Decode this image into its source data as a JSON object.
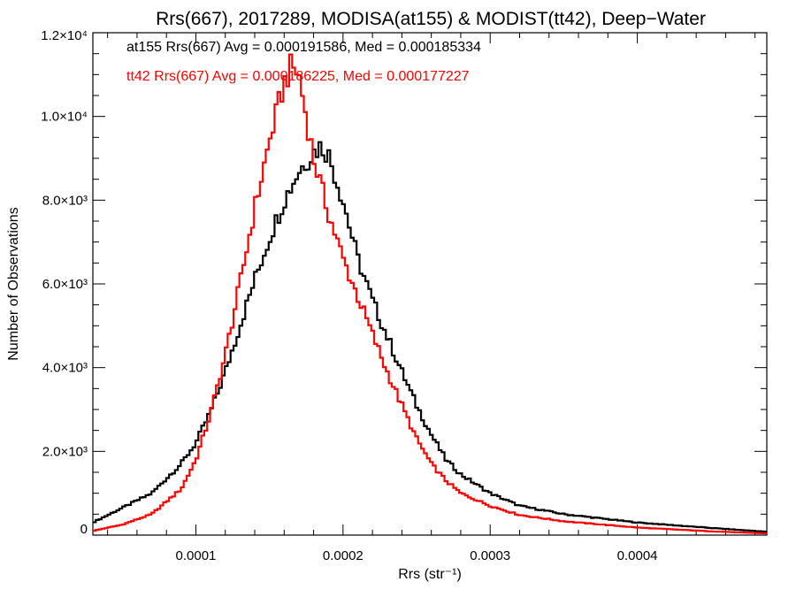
{
  "chart_data": {
    "type": "line",
    "title": "Rrs(667), 2017289, MODISA(at155) & MODIST(tt42), Deep−Water",
    "xlabel": "Rrs (str⁻¹)",
    "ylabel": "Number of Observations",
    "xlim": [
      3e-05,
      0.000488
    ],
    "ylim": [
      0,
      12000
    ],
    "x_ticks": [
      {
        "value": 0.0001,
        "label": "0.0001"
      },
      {
        "value": 0.0002,
        "label": "0.0002"
      },
      {
        "value": 0.0003,
        "label": "0.0003"
      },
      {
        "value": 0.0004,
        "label": "0.0004"
      }
    ],
    "y_ticks": [
      {
        "value": 0,
        "label": "0"
      },
      {
        "value": 2000,
        "label": "2.0×10³"
      },
      {
        "value": 4000,
        "label": "4.0×10³"
      },
      {
        "value": 6000,
        "label": "6.0×10³"
      },
      {
        "value": 8000,
        "label": "8.0×10³"
      },
      {
        "value": 10000,
        "label": "1.0×10⁴"
      },
      {
        "value": 12000,
        "label": "1.2×10⁴"
      }
    ],
    "grid": false,
    "series": [
      {
        "color": "#000000",
        "annotation": "at155 Rrs(667) Avg = 0.000191586, Med = 0.000185334",
        "x": [
          3e-05,
          5e-05,
          7e-05,
          9e-05,
          0.0001,
          0.00011,
          0.00012,
          0.00013,
          0.00014,
          0.00015,
          0.00016,
          0.00017,
          0.00018,
          0.000185,
          0.00019,
          0.0002,
          0.00021,
          0.00022,
          0.00023,
          0.00024,
          0.00025,
          0.00026,
          0.00027,
          0.00028,
          0.0003,
          0.00032,
          0.00035,
          0.0004,
          0.00045,
          0.000488
        ],
        "y": [
          300,
          650,
          1000,
          1700,
          2200,
          2950,
          3900,
          5000,
          6100,
          7100,
          8000,
          8700,
          9150,
          9300,
          9100,
          8000,
          6600,
          5600,
          4750,
          3900,
          3100,
          2400,
          1800,
          1450,
          1000,
          700,
          500,
          300,
          170,
          80
        ]
      },
      {
        "color": "#ff0000",
        "annotation": "tt42 Rrs(667) Avg = 0.000186225, Med = 0.000177227",
        "x": [
          3e-05,
          5e-05,
          7e-05,
          9e-05,
          0.0001,
          0.00011,
          0.00012,
          0.00013,
          0.00014,
          0.00015,
          0.00016,
          0.000165,
          0.00017,
          0.00018,
          0.00019,
          0.0002,
          0.00021,
          0.00022,
          0.00023,
          0.00024,
          0.00025,
          0.00026,
          0.00027,
          0.00028,
          0.0003,
          0.00032,
          0.00035,
          0.0004,
          0.00045,
          0.000488
        ],
        "y": [
          100,
          250,
          500,
          1100,
          1800,
          2900,
          4300,
          6000,
          7800,
          9400,
          10800,
          11200,
          11000,
          9000,
          7700,
          6600,
          5700,
          4800,
          3900,
          3100,
          2300,
          1700,
          1300,
          1000,
          700,
          480,
          330,
          180,
          90,
          40
        ]
      }
    ]
  }
}
